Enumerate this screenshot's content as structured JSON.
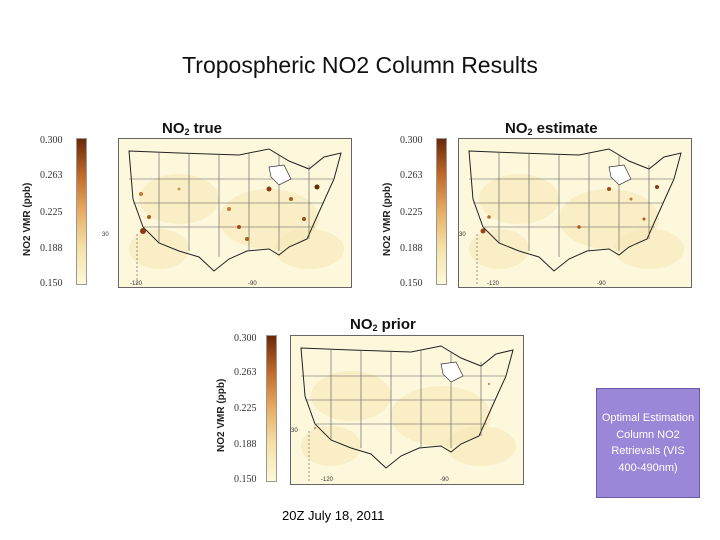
{
  "slide": {
    "title": "Tropospheric NO2 Column Results",
    "date": "20Z July 18, 2011",
    "callout": "Optimal Estimation Column NO2 Retrievals (VIS 400-490nm)"
  },
  "panels": [
    {
      "id": "true",
      "title_main": "NO",
      "title_sub": "2",
      "title_rest": " true",
      "colorbar_label": "NO2 VMR (ppb)",
      "ticks": [
        "0.300",
        "0.263",
        "0.225",
        "0.188",
        "0.150"
      ],
      "lat_label": "30",
      "lon_labels": [
        "-120",
        "-90"
      ]
    },
    {
      "id": "estimate",
      "title_main": "NO",
      "title_sub": "2",
      "title_rest": " estimate",
      "colorbar_label": "NO2 VMR (ppb)",
      "ticks": [
        "0.300",
        "0.263",
        "0.225",
        "0.188",
        "0.150"
      ],
      "lat_label": "30",
      "lon_labels": [
        "-120",
        "-90"
      ]
    },
    {
      "id": "prior",
      "title_main": "NO",
      "title_sub": "2",
      "title_rest": " prior",
      "colorbar_label": "NO2 VMR (ppb)",
      "ticks": [
        "0.300",
        "0.263",
        "0.225",
        "0.188",
        "0.150"
      ],
      "lat_label": "30",
      "lon_labels": [
        "-120",
        "-90"
      ]
    }
  ],
  "colors": {
    "cbar_low": "#fdf8d8",
    "cbar_high": "#6a2808",
    "callout_bg": "#9b87d8"
  }
}
